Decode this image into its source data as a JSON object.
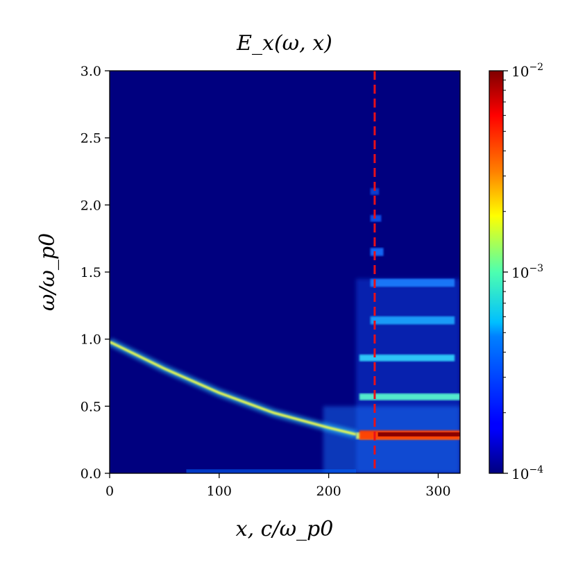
{
  "chart_data": {
    "type": "heatmap",
    "title": "E_x(ω, x)",
    "xlabel": "x, c/ω_p0",
    "ylabel": "ω/ω_p0",
    "xlim": [
      0,
      320
    ],
    "ylim": [
      0,
      3.0
    ],
    "x_ticks": [
      "0",
      "100",
      "200",
      "300"
    ],
    "x_tick_values": [
      0,
      100,
      200,
      300
    ],
    "y_ticks": [
      "0.0",
      "0.5",
      "1.0",
      "1.5",
      "2.0",
      "2.5",
      "3.0"
    ],
    "y_tick_values": [
      0.0,
      0.5,
      1.0,
      1.5,
      2.0,
      2.5,
      3.0
    ],
    "colormap": "jet",
    "color_scale": "log",
    "colorbar": {
      "range": [
        0.0001,
        0.01
      ],
      "ticks": [
        {
          "value": 0.01,
          "base": "10",
          "exp": "−2"
        },
        {
          "value": 0.001,
          "base": "10",
          "exp": "−3"
        },
        {
          "value": 0.0001,
          "base": "10",
          "exp": "−4"
        }
      ]
    },
    "annotations": [
      {
        "kind": "vertical-dashed-line",
        "x": 242,
        "color": "#e8101a"
      }
    ],
    "features": {
      "dispersion_curve": [
        [
          0,
          0.98
        ],
        [
          50,
          0.78
        ],
        [
          100,
          0.6
        ],
        [
          150,
          0.45
        ],
        [
          200,
          0.34
        ],
        [
          225,
          0.29
        ],
        [
          320,
          0.29
        ]
      ],
      "harmonic_bands_omega": [
        0.28,
        0.57,
        0.86,
        1.14,
        1.42,
        1.65,
        1.9,
        2.1
      ],
      "turbulent_region_x": [
        225,
        320
      ]
    },
    "grid": false,
    "colors": {
      "background_low": "#00007f",
      "peak": "#7f0000",
      "dashed_line": "#e8101a"
    }
  }
}
